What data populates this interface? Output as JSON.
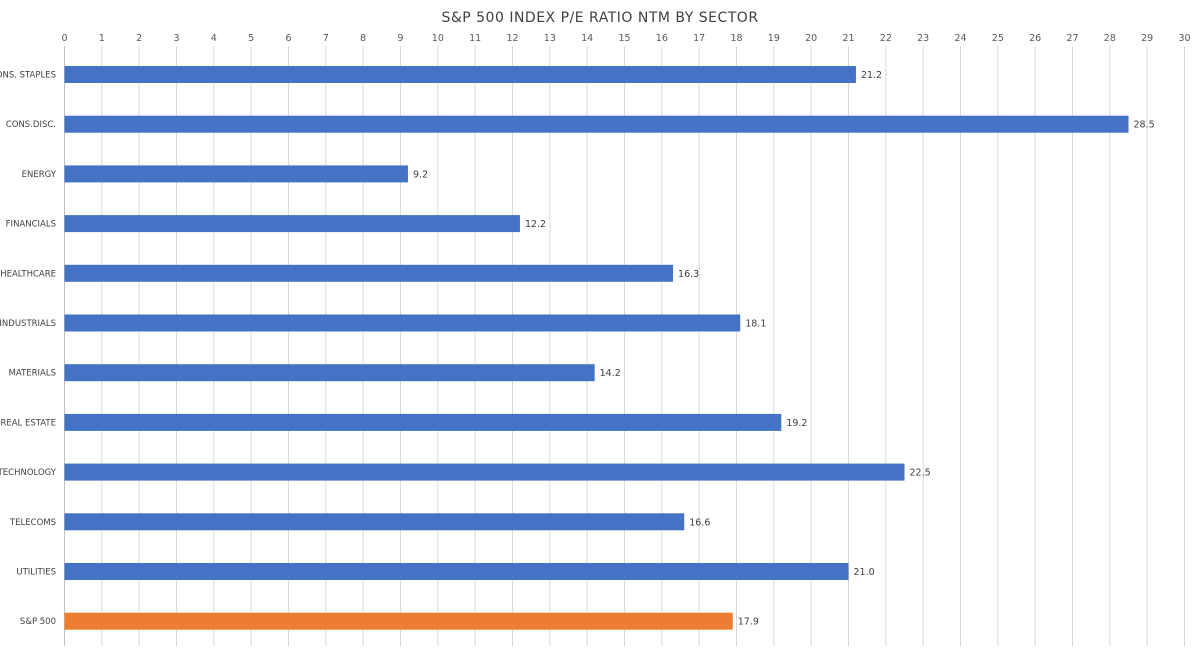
{
  "chart_data": {
    "type": "bar",
    "orientation": "horizontal",
    "title": "S&P 500 INDEX P/E RATIO NTM BY SECTOR",
    "xlabel": "",
    "ylabel": "",
    "xlim": [
      0,
      30
    ],
    "x_ticks": [
      "0",
      "1",
      "2",
      "3",
      "4",
      "5",
      "6",
      "7",
      "8",
      "9",
      "10",
      "11",
      "12",
      "13",
      "14",
      "15",
      "16",
      "17",
      "18",
      "19",
      "20",
      "21",
      "22",
      "23",
      "24",
      "25",
      "26",
      "27",
      "28",
      "29",
      "30"
    ],
    "x_axis_position": "top",
    "grid": true,
    "legend": "none",
    "categories": [
      "CONS. STAPLES",
      "CONS.DISC.",
      "ENERGY",
      "FINANCIALS",
      "HEALTHCARE",
      "INDUSTRIALS",
      "MATERIALS",
      "REAL ESTATE",
      "TECHNOLOGY",
      "TELECOMS",
      "UTILITIES",
      "S&P 500"
    ],
    "values": [
      21.2,
      28.5,
      9.2,
      12.2,
      16.3,
      18.1,
      14.2,
      19.2,
      22.5,
      16.6,
      21.0,
      17.9
    ],
    "value_labels": [
      "21.2",
      "28.5",
      "9.2",
      "12.2",
      "16.3",
      "18.1",
      "14.2",
      "19.2",
      "22.5",
      "16.6",
      "21.0",
      "17.9"
    ],
    "colors": {
      "default_bar": "#4472c4",
      "highlight_bar": "#ed7d31",
      "highlight_category": "S&P 500"
    }
  }
}
